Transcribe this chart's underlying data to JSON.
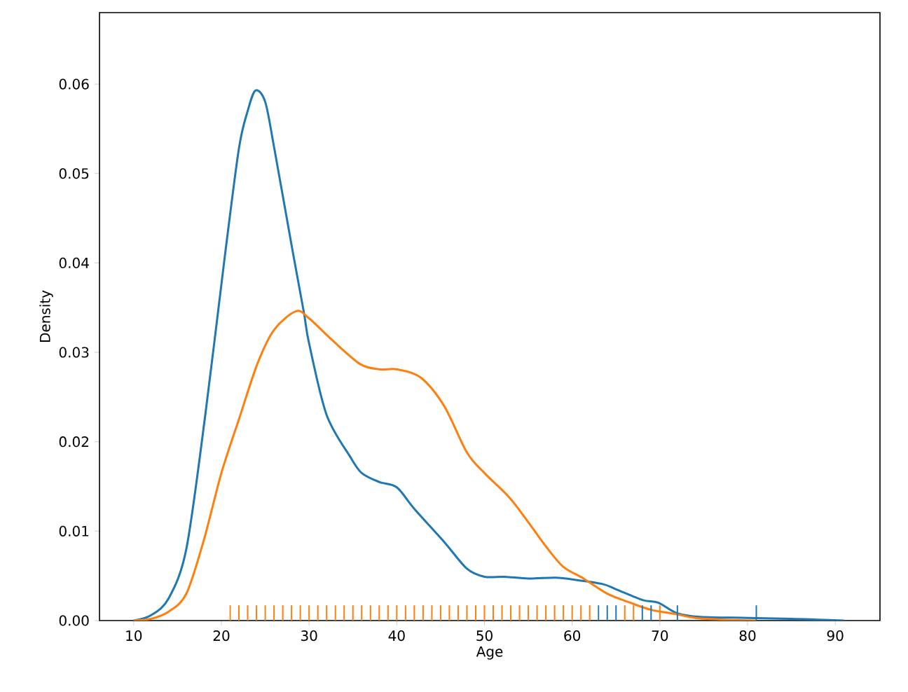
{
  "chart_data": {
    "type": "line",
    "xlabel": "Age",
    "ylabel": "Density",
    "xlim": [
      6.1,
      95.1
    ],
    "ylim": [
      0,
      0.068
    ],
    "xticks": [
      10,
      20,
      30,
      40,
      50,
      60,
      70,
      80,
      90
    ],
    "yticks": [
      {
        "value": 0,
        "label": "0.00"
      },
      {
        "value": 0.01,
        "label": "0.01"
      },
      {
        "value": 0.02,
        "label": "0.02"
      },
      {
        "value": 0.03,
        "label": "0.03"
      },
      {
        "value": 0.04,
        "label": "0.04"
      },
      {
        "value": 0.05,
        "label": "0.05"
      },
      {
        "value": 0.06,
        "label": "0.06"
      }
    ],
    "grid": false,
    "series": [
      {
        "color": "#1f77b4",
        "x": [
          10,
          12,
          14,
          16,
          18.1,
          20.4,
          22,
          23,
          23.9,
          25,
          26,
          28,
          29.4,
          30,
          32,
          34.7,
          36,
          38,
          40,
          42,
          45.4,
          48,
          50,
          52.3,
          55,
          58.1,
          60,
          63.4,
          65,
          68,
          69.8,
          72,
          74.6,
          80,
          85,
          88,
          91
        ],
        "values": [
          0,
          0.0006,
          0.0025,
          0.008,
          0.0225,
          0.0408,
          0.0528,
          0.057,
          0.0593,
          0.058,
          0.053,
          0.042,
          0.0345,
          0.031,
          0.023,
          0.0183,
          0.0165,
          0.0155,
          0.0149,
          0.0125,
          0.0088,
          0.0058,
          0.0049,
          0.0049,
          0.0047,
          0.0048,
          0.0046,
          0.0041,
          0.0035,
          0.0023,
          0.002,
          0.0008,
          0.0004,
          0.0003,
          0.0002,
          0.0001,
          0
        ]
      },
      {
        "color": "#ff7f0e",
        "x": [
          10,
          12,
          14,
          16,
          18,
          20,
          22,
          24.1,
          26,
          28.5,
          30,
          32.6,
          35.8,
          38,
          40,
          42.7,
          45.4,
          48,
          50,
          52.8,
          55,
          57,
          59,
          61.3,
          64,
          66.6,
          69,
          71.9,
          74,
          77.3,
          81
        ],
        "values": [
          0,
          0.0002,
          0.001,
          0.003,
          0.009,
          0.0165,
          0.0225,
          0.0287,
          0.0325,
          0.0346,
          0.0338,
          0.0314,
          0.0287,
          0.0281,
          0.0281,
          0.0272,
          0.024,
          0.0188,
          0.0165,
          0.0138,
          0.011,
          0.0083,
          0.006,
          0.0047,
          0.003,
          0.002,
          0.0012,
          0.0007,
          0.0003,
          0.0001,
          0
        ]
      },
      {
        "type": "bar",
        "color": "#1f77b4",
        "x": [
          63,
          64,
          65,
          68,
          69,
          72,
          81
        ],
        "values": [
          0.0017,
          0.0017,
          0.0017,
          0.0017,
          0.0017,
          0.0017,
          0.0017
        ]
      },
      {
        "type": "bar",
        "color": "#ff7f0e",
        "x": [
          21,
          22,
          23,
          24,
          25,
          26,
          27,
          28,
          29,
          30,
          31,
          32,
          33,
          34,
          35,
          36,
          37,
          38,
          39,
          40,
          41,
          42,
          43,
          44,
          45,
          46,
          47,
          48,
          49,
          50,
          51,
          52,
          53,
          54,
          55,
          56,
          57,
          58,
          59,
          60,
          61,
          62,
          66,
          67,
          70
        ],
        "values": [
          0.0017,
          0.0017,
          0.0017,
          0.0017,
          0.0017,
          0.0017,
          0.0017,
          0.0017,
          0.0017,
          0.0017,
          0.0017,
          0.0017,
          0.0017,
          0.0017,
          0.0017,
          0.0017,
          0.0017,
          0.0017,
          0.0017,
          0.0017,
          0.0017,
          0.0017,
          0.0017,
          0.0017,
          0.0017,
          0.0017,
          0.0017,
          0.0017,
          0.0017,
          0.0017,
          0.0017,
          0.0017,
          0.0017,
          0.0017,
          0.0017,
          0.0017,
          0.0017,
          0.0017,
          0.0017,
          0.0017,
          0.0017,
          0.0017,
          0.0017,
          0.0017,
          0.0017
        ]
      }
    ]
  }
}
